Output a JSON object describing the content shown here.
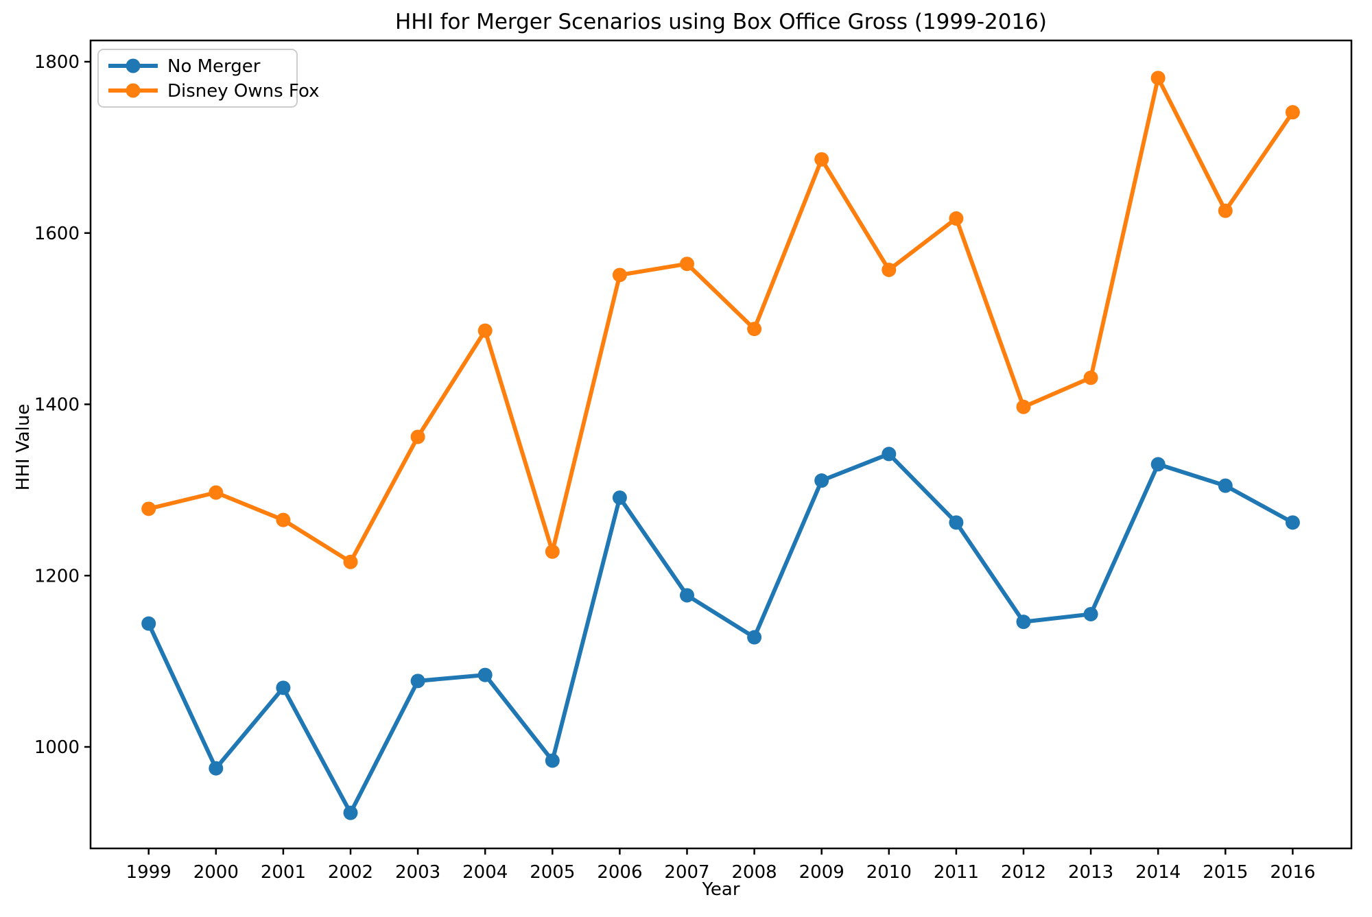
{
  "figure": {
    "title": "HHI for Merger Scenarios using Box Office Gross (1999-2016)",
    "xlabel": "Year",
    "ylabel": "HHI Value"
  },
  "chart_data": {
    "type": "line",
    "title": "HHI for Merger Scenarios using Box Office Gross (1999-2016)",
    "xlabel": "Year",
    "ylabel": "HHI Value",
    "x": [
      1999,
      2000,
      2001,
      2002,
      2003,
      2004,
      2005,
      2006,
      2007,
      2008,
      2009,
      2010,
      2011,
      2012,
      2013,
      2014,
      2015,
      2016
    ],
    "series": [
      {
        "name": "No Merger",
        "color": "#1f77b4",
        "values": [
          1144,
          975,
          1069,
          923,
          1077,
          1084,
          984,
          1291,
          1177,
          1128,
          1311,
          1342,
          1262,
          1146,
          1155,
          1330,
          1305,
          1262
        ]
      },
      {
        "name": "Disney Owns Fox",
        "color": "#ff7f0e",
        "values": [
          1278,
          1297,
          1265,
          1216,
          1362,
          1486,
          1228,
          1551,
          1564,
          1488,
          1686,
          1557,
          1617,
          1397,
          1431,
          1781,
          1626,
          1741
        ]
      }
    ],
    "ylim": [
      881,
      1825
    ],
    "yticks": [
      1000,
      1200,
      1400,
      1600,
      1800
    ],
    "grid": false,
    "legend_position": "upper left",
    "marker": "o"
  }
}
